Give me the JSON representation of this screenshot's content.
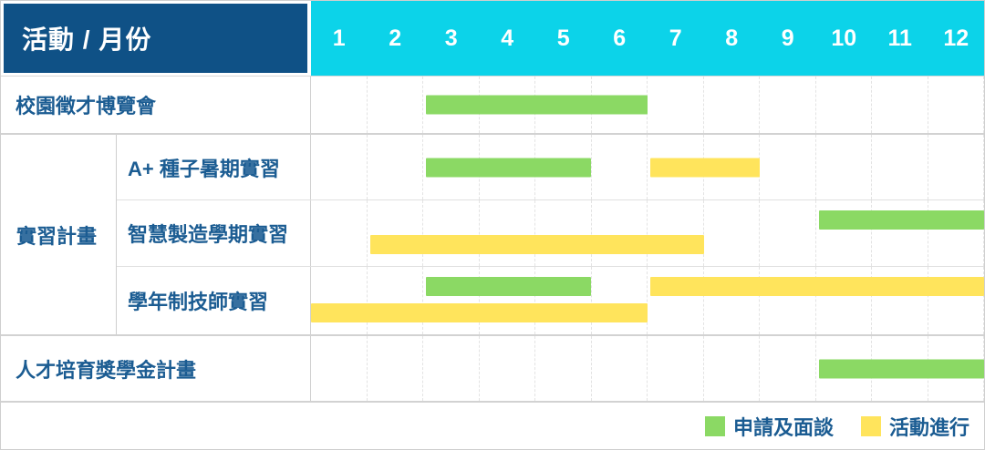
{
  "header": {
    "title": "活動 / 月份",
    "months": [
      "1",
      "2",
      "3",
      "4",
      "5",
      "6",
      "7",
      "8",
      "9",
      "10",
      "11",
      "12"
    ]
  },
  "colors": {
    "header_blue": "#0F5186",
    "header_cyan": "#0CD3E9",
    "bar_green": "#8BD964",
    "bar_yellow": "#FFE45C",
    "label_text": "#1B5C92",
    "header_text": "#FFFFFF"
  },
  "legend": {
    "items": [
      {
        "key": "green",
        "label": "申請及面談",
        "color": "#8BD964"
      },
      {
        "key": "yellow",
        "label": "活動進行",
        "color": "#FFE45C"
      }
    ]
  },
  "chart_data": {
    "type": "gantt",
    "title": "活動 / 月份",
    "x_axis": {
      "label": "月份",
      "ticks": [
        "1",
        "2",
        "3",
        "4",
        "5",
        "6",
        "7",
        "8",
        "9",
        "10",
        "11",
        "12"
      ],
      "range": [
        1,
        12
      ]
    },
    "legend_entries": [
      {
        "label": "申請及面談",
        "color": "#8BD964"
      },
      {
        "label": "活動進行",
        "color": "#FFE45C"
      }
    ],
    "rows": [
      {
        "group": "",
        "label": "校園徵才博覽會",
        "bars": [
          {
            "series": "申請及面談",
            "color_key": "green",
            "start_month": 3,
            "end_month": 6,
            "lane": "single"
          }
        ]
      },
      {
        "group": "實習計畫",
        "label": "A+ 種子暑期實習",
        "bars": [
          {
            "series": "申請及面談",
            "color_key": "green",
            "start_month": 3,
            "end_month": 5,
            "lane": "single"
          },
          {
            "series": "活動進行",
            "color_key": "yellow",
            "start_month": 7,
            "end_month": 8,
            "lane": "single"
          }
        ]
      },
      {
        "group": "實習計畫",
        "label": "智慧製造學期實習",
        "bars": [
          {
            "series": "申請及面談",
            "color_key": "green",
            "start_month": 10,
            "end_month": 12,
            "lane": "top"
          },
          {
            "series": "活動進行",
            "color_key": "yellow",
            "start_month": 2,
            "end_month": 7,
            "lane": "bottom"
          }
        ]
      },
      {
        "group": "實習計畫",
        "label": "學年制技師實習",
        "bars": [
          {
            "series": "申請及面談",
            "color_key": "green",
            "start_month": 3,
            "end_month": 5,
            "lane": "top"
          },
          {
            "series": "活動進行",
            "color_key": "yellow",
            "start_month": 7,
            "end_month": 12,
            "lane": "top"
          },
          {
            "series": "活動進行",
            "color_key": "yellow",
            "start_month": 1,
            "end_month": 6,
            "lane": "bottom"
          }
        ]
      },
      {
        "group": "",
        "label": "人才培育獎學金計畫",
        "bars": [
          {
            "series": "申請及面談",
            "color_key": "green",
            "start_month": 10,
            "end_month": 12,
            "lane": "single"
          }
        ]
      }
    ]
  }
}
